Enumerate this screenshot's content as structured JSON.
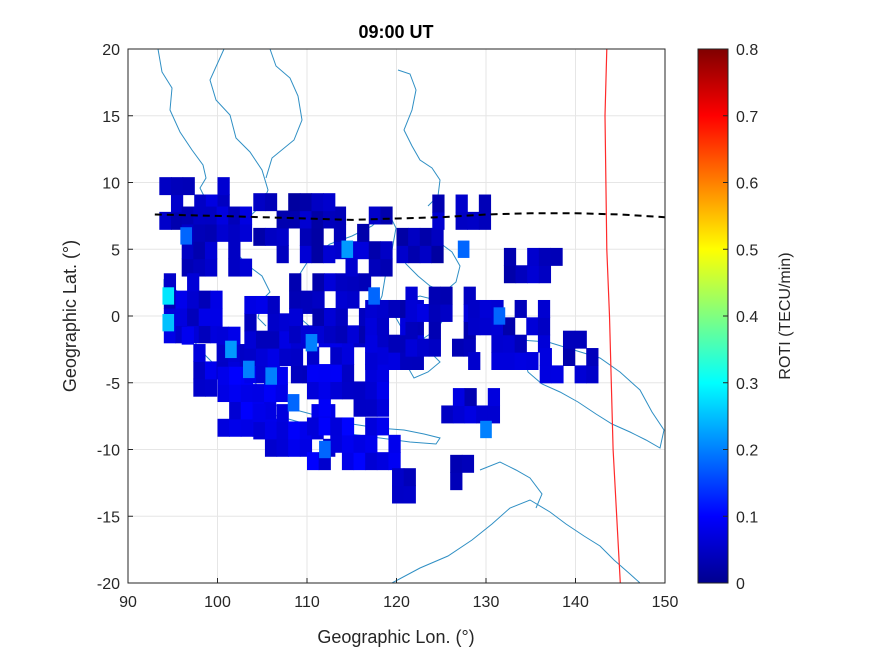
{
  "chart_data": {
    "type": "heatmap",
    "title": "09:00 UT",
    "xlabel": "Geographic Lon. (°)",
    "ylabel": "Geographic Lat. (°)",
    "xlim": [
      90,
      150
    ],
    "ylim": [
      -20,
      20
    ],
    "xticks": [
      "90",
      "100",
      "110",
      "120",
      "130",
      "140",
      "150"
    ],
    "yticks": [
      "-20",
      "-15",
      "-10",
      "-5",
      "0",
      "5",
      "10",
      "15",
      "20"
    ],
    "grid": true,
    "colorbar": {
      "label": "ROTI (TECU/min)",
      "range": [
        0,
        0.8
      ],
      "ticks": [
        "0",
        "0.1",
        "0.2",
        "0.3",
        "0.4",
        "0.5",
        "0.6",
        "0.7",
        "0.8"
      ],
      "colormap": "jet"
    },
    "magnetic_equator": {
      "style": "dashed",
      "color": "#000000",
      "points": [
        [
          93,
          7.6
        ],
        [
          100,
          7.5
        ],
        [
          110,
          7.3
        ],
        [
          115,
          7.2
        ],
        [
          120,
          7.3
        ],
        [
          125,
          7.4
        ],
        [
          130,
          7.6
        ],
        [
          135,
          7.7
        ],
        [
          140,
          7.7
        ],
        [
          145,
          7.6
        ],
        [
          150,
          7.4
        ]
      ]
    },
    "terminator": {
      "style": "solid",
      "color": "#ff2a2a",
      "points": [
        [
          143.5,
          20
        ],
        [
          143.3,
          15
        ],
        [
          143.4,
          10
        ],
        [
          143.5,
          5
        ],
        [
          143.8,
          0
        ],
        [
          144.0,
          -5
        ],
        [
          144.2,
          -10
        ],
        [
          144.6,
          -15
        ],
        [
          145.0,
          -20
        ]
      ]
    },
    "roti_regions": [
      {
        "lon": [
          93.5,
          100
        ],
        "lat": [
          6.5,
          9.5
        ],
        "roti": 0.05
      },
      {
        "lon": [
          96,
          102.5
        ],
        "lat": [
          3,
          8
        ],
        "roti": 0.05
      },
      {
        "lon": [
          94,
          100
        ],
        "lat": [
          -2,
          3
        ],
        "roti": 0.06
      },
      {
        "lon": [
          96,
          103
        ],
        "lat": [
          -6,
          -1
        ],
        "roti": 0.07
      },
      {
        "lon": [
          100,
          107
        ],
        "lat": [
          -9,
          -4
        ],
        "roti": 0.08
      },
      {
        "lon": [
          104,
          112
        ],
        "lat": [
          -10.5,
          -7
        ],
        "roti": 0.08
      },
      {
        "lon": [
          110,
          120
        ],
        "lat": [
          -11.5,
          -8
        ],
        "roti": 0.08
      },
      {
        "lon": [
          103,
          110
        ],
        "lat": [
          -5,
          1
        ],
        "roti": 0.06
      },
      {
        "lon": [
          110,
          118
        ],
        "lat": [
          -7.5,
          -2
        ],
        "roti": 0.07
      },
      {
        "lon": [
          108,
          116
        ],
        "lat": [
          -2,
          3
        ],
        "roti": 0.05
      },
      {
        "lon": [
          113,
          119
        ],
        "lat": [
          3,
          7.5
        ],
        "roti": 0.05
      },
      {
        "lon": [
          116.5,
          122
        ],
        "lat": [
          -4,
          0
        ],
        "roti": 0.05
      },
      {
        "lon": [
          121,
          128
        ],
        "lat": [
          -3,
          1.5
        ],
        "roti": 0.05
      },
      {
        "lon": [
          128,
          136
        ],
        "lat": [
          -4,
          0.5
        ],
        "roti": 0.05
      },
      {
        "lon": [
          104,
          113
        ],
        "lat": [
          4,
          8
        ],
        "roti": 0.04
      },
      {
        "lon": [
          120,
          125
        ],
        "lat": [
          4,
          6.5
        ],
        "roti": 0.04
      },
      {
        "lon": [
          124,
          130
        ],
        "lat": [
          6.5,
          8.5
        ],
        "roti": 0.04
      },
      {
        "lon": [
          132,
          138
        ],
        "lat": [
          2.5,
          4.5
        ],
        "roti": 0.04
      },
      {
        "lon": [
          136,
          142
        ],
        "lat": [
          -5,
          -1.5
        ],
        "roti": 0.05
      },
      {
        "lon": [
          119.5,
          121
        ],
        "lat": [
          -14,
          -12.5
        ],
        "roti": 0.05
      },
      {
        "lon": [
          126,
          127.5
        ],
        "lat": [
          -13,
          -11.5
        ],
        "roti": 0.05
      },
      {
        "lon": [
          125,
          131
        ],
        "lat": [
          -8,
          -6
        ],
        "roti": 0.05
      }
    ],
    "roti_hotspots": [
      {
        "lon": 94.5,
        "lat": 1.5,
        "roti": 0.28
      },
      {
        "lon": 94.5,
        "lat": -0.5,
        "roti": 0.25
      },
      {
        "lon": 114.5,
        "lat": 5.0,
        "roti": 0.22
      },
      {
        "lon": 131.5,
        "lat": 0.0,
        "roti": 0.18
      },
      {
        "lon": 130.0,
        "lat": -8.5,
        "roti": 0.2
      },
      {
        "lon": 127.5,
        "lat": 5.0,
        "roti": 0.18
      },
      {
        "lon": 101.5,
        "lat": -2.5,
        "roti": 0.22
      },
      {
        "lon": 103.5,
        "lat": -4.0,
        "roti": 0.2
      },
      {
        "lon": 106.0,
        "lat": -4.5,
        "roti": 0.2
      },
      {
        "lon": 108.5,
        "lat": -6.5,
        "roti": 0.18
      },
      {
        "lon": 110.5,
        "lat": -2.0,
        "roti": 0.2
      },
      {
        "lon": 96.5,
        "lat": 6.0,
        "roti": 0.18
      },
      {
        "lon": 112.0,
        "lat": -10.0,
        "roti": 0.18
      },
      {
        "lon": 117.5,
        "lat": 1.5,
        "roti": 0.18
      }
    ]
  }
}
